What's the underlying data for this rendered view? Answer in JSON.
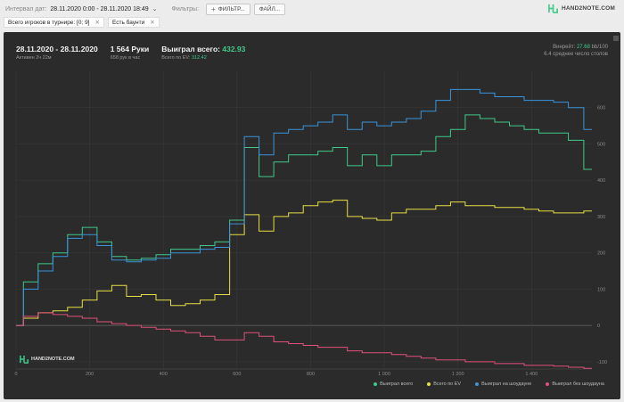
{
  "toolbar": {
    "interval_label": "Интервал дат:",
    "interval_value": "28.11.2020 0:00 - 28.11.2020 18:49",
    "interval_chevron": "⌄",
    "filters_label": "Фильтры:",
    "filter_button": "ФИЛЬТР...",
    "filter_plus": "+",
    "file_button": "ФАЙЛ...",
    "logo_text": "HAND2NOTE.COM"
  },
  "chips": [
    {
      "label": "Всего игроков в турнире: [0; 9]",
      "close": "✕"
    },
    {
      "label": "Есть баунти",
      "close": "✕"
    }
  ],
  "summary": {
    "date_range": "28.11.2020 - 28.11.2020",
    "active": "Активен 2ч 22м",
    "hands": "1 564 Руки",
    "hands_rate": "658 рук в час",
    "won_total_label": "Выиграл всего:",
    "won_total_value": "432.93",
    "ev_label": "Всего по EV:",
    "ev_value": "312.42",
    "winrate_label": "Винрейт:",
    "winrate_value": "27.68",
    "winrate_suffix": "bb/100",
    "avg_tables": "6.4 среднее число столов"
  },
  "watermark": "HAND2NOTE.COM",
  "legend": [
    {
      "label": "Выиграл всего",
      "color": "#3fc98a"
    },
    {
      "label": "Всего по EV",
      "color": "#e6e043"
    },
    {
      "label": "Выиграл на шоудауне",
      "color": "#3b93d9"
    },
    {
      "label": "Выиграл без шоудауна",
      "color": "#e0507a"
    }
  ],
  "chart_data": {
    "type": "line",
    "x_ticks": [
      "0",
      "200",
      "400",
      "600",
      "800",
      "1 000",
      "1 200",
      "1 400"
    ],
    "y_ticks": [
      "600",
      "500",
      "400",
      "300",
      "200",
      "100",
      "0",
      "-100"
    ],
    "xlim": [
      0,
      1564
    ],
    "ylim": [
      -120,
      700
    ],
    "grid": true,
    "legend_position": "bottom-right",
    "x": [
      0,
      40,
      80,
      120,
      160,
      200,
      240,
      280,
      320,
      360,
      400,
      440,
      480,
      520,
      560,
      600,
      640,
      680,
      720,
      760,
      800,
      840,
      880,
      920,
      960,
      1000,
      1040,
      1080,
      1120,
      1160,
      1200,
      1240,
      1280,
      1320,
      1360,
      1400,
      1440,
      1480,
      1520,
      1564
    ],
    "series": [
      {
        "name": "Выиграл всего",
        "color": "#3fc98a",
        "values": [
          0,
          120,
          170,
          200,
          250,
          270,
          230,
          190,
          180,
          185,
          195,
          210,
          210,
          220,
          230,
          290,
          490,
          410,
          450,
          470,
          470,
          480,
          490,
          440,
          470,
          440,
          470,
          470,
          480,
          520,
          540,
          580,
          570,
          560,
          550,
          540,
          530,
          530,
          510,
          430
        ]
      },
      {
        "name": "Всего по EV",
        "color": "#e6e043",
        "values": [
          0,
          20,
          35,
          40,
          50,
          70,
          95,
          110,
          80,
          85,
          70,
          55,
          60,
          70,
          85,
          250,
          305,
          260,
          300,
          310,
          330,
          340,
          345,
          300,
          295,
          290,
          310,
          320,
          320,
          330,
          340,
          330,
          330,
          325,
          325,
          320,
          315,
          310,
          310,
          315
        ]
      },
      {
        "name": "Выиграл на шоудауне",
        "color": "#3b93d9",
        "values": [
          0,
          100,
          150,
          190,
          240,
          250,
          220,
          180,
          175,
          180,
          185,
          200,
          200,
          210,
          215,
          280,
          520,
          470,
          530,
          540,
          550,
          560,
          580,
          540,
          560,
          550,
          560,
          570,
          590,
          620,
          650,
          650,
          640,
          630,
          630,
          620,
          620,
          615,
          600,
          540
        ]
      },
      {
        "name": "Выиграл без шоудауна",
        "color": "#e0507a",
        "values": [
          0,
          25,
          35,
          30,
          25,
          20,
          10,
          5,
          0,
          -5,
          -10,
          -15,
          -20,
          -30,
          -40,
          -40,
          -20,
          -30,
          -45,
          -50,
          -55,
          -60,
          -60,
          -70,
          -75,
          -75,
          -80,
          -85,
          -90,
          -95,
          -95,
          -100,
          -100,
          -105,
          -105,
          -110,
          -110,
          -112,
          -115,
          -118
        ]
      }
    ]
  }
}
